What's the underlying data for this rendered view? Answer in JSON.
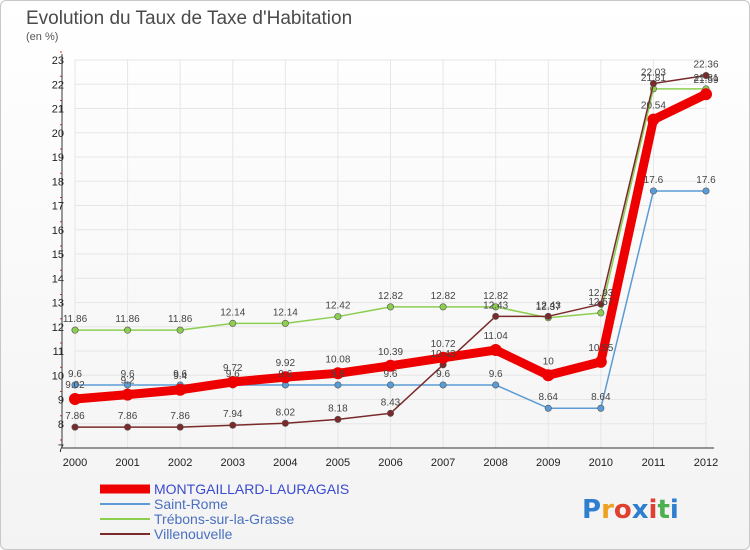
{
  "chart_data": {
    "type": "line",
    "title": "Evolution du Taux de Taxe d'Habitation",
    "subtitle": "(en %)",
    "x": [
      "2000",
      "2001",
      "2002",
      "2003",
      "2004",
      "2005",
      "2006",
      "2007",
      "2008",
      "2009",
      "2010",
      "2011",
      "2012"
    ],
    "ylim": [
      7,
      23
    ],
    "yticks": [
      7,
      8,
      9,
      10,
      11,
      12,
      13,
      14,
      15,
      16,
      17,
      18,
      19,
      20,
      21,
      22,
      23
    ],
    "grid": true,
    "legend_position": "bottom-left",
    "brand": "Proxiti",
    "series": [
      {
        "name": "MONTGAILLARD-LAURAGAIS",
        "color": "#ee0000",
        "values": [
          9.02,
          9.2,
          9.4,
          9.72,
          9.92,
          10.08,
          10.39,
          10.72,
          11.04,
          10,
          10.55,
          20.54,
          21.59
        ],
        "labels": [
          "9.02",
          "9.2",
          "9.4",
          "9.72",
          "9.92",
          "10.08",
          "10.39",
          "10.72",
          "11.04",
          "10",
          "10.55",
          "20.54",
          "21.59"
        ]
      },
      {
        "name": "Saint-Rome",
        "color": "#5b9bd5",
        "values": [
          9.6,
          9.6,
          9.6,
          9.6,
          9.6,
          9.6,
          9.6,
          9.6,
          9.6,
          8.64,
          8.64,
          17.6,
          17.6
        ],
        "labels": [
          "9.6",
          "9.6",
          "9.6",
          "9.6",
          "9.6",
          "9.6",
          "9.6",
          "9.6",
          "9.6",
          "8.64",
          "8.64",
          "17.6",
          "17.6"
        ]
      },
      {
        "name": "Trébons-sur-la-Grasse",
        "color": "#8ccf50",
        "values": [
          11.86,
          11.86,
          11.86,
          12.14,
          12.14,
          12.42,
          12.82,
          12.82,
          12.82,
          12.37,
          12.57,
          21.81,
          21.81
        ],
        "labels": [
          "11.86",
          "11.86",
          "11.86",
          "12.14",
          "12.14",
          "12.42",
          "12.82",
          "12.82",
          "12.82",
          "12.37",
          "12.57",
          "21.81",
          "21.81"
        ]
      },
      {
        "name": "Villenouvelle",
        "color": "#7a2a2a",
        "values": [
          7.86,
          7.86,
          7.86,
          7.94,
          8.02,
          8.18,
          8.43,
          10.43,
          12.43,
          12.43,
          12.93,
          22.03,
          22.36
        ],
        "labels": [
          "7.86",
          "7.86",
          "7.86",
          "7.94",
          "8.02",
          "8.18",
          "8.43",
          "10.43",
          "12.43",
          "12.43",
          "12.93",
          "22.03",
          "22.36"
        ]
      }
    ]
  }
}
